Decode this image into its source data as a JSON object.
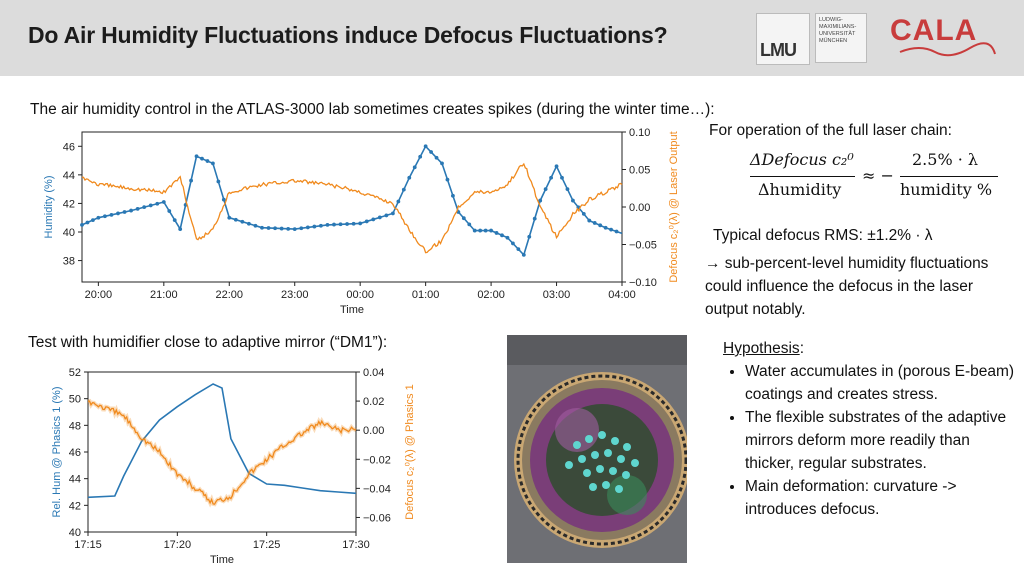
{
  "header": {
    "title": "Do Air Humidity Fluctuations induce Defocus Fluctuations?",
    "lmu_logo": "LMU",
    "lmu_name_lines": [
      "LUDWIG-",
      "MAXIMILIANS-",
      "UNIVERSITÄT",
      "MÜNCHEN"
    ],
    "cala_logo": "CALA"
  },
  "intro_text": "The air humidity control in the ATLAS-3000 lab sometimes creates spikes (during the winter time…):",
  "right_panel": {
    "operation_text": "For operation of the full laser chain:",
    "equation": {
      "lhs_num": "ΔDefocus c₂⁰",
      "lhs_den": "Δhumidity",
      "approx": "≈ −",
      "rhs_num": "2.5% · λ",
      "rhs_den": "humidity %"
    },
    "rms_text": "Typical defocus RMS: ±1.2% · λ",
    "conclusion_text": "→ sub-percent-level humidity fluctuations could influence the defocus in the laser output notably.",
    "hypothesis_title": "Hypothesis",
    "hypothesis_colon": ":",
    "hypothesis_items": [
      "Water accumulates in (porous E-beam) coatings and creates stress.",
      "The flexible substrates of the adaptive mirrors deform more readily than thicker, regular substrates.",
      "Main deformation: curvature -> introduces defocus."
    ]
  },
  "test_text": "Test with humidifier close to adaptive mirror (“DM1”):",
  "colors": {
    "humidity": "#2a78b4",
    "defocus": "#f08a1e",
    "cala_red": "#c83c3c"
  },
  "chart_data": [
    {
      "type": "line",
      "xlabel": "Time",
      "ylabel_left": "Humidity (%)",
      "ylabel_right": "Defocus c₂⁰(λ) @ Laser Output",
      "x_ticks": [
        "20:00",
        "21:00",
        "22:00",
        "23:00",
        "00:00",
        "01:00",
        "02:00",
        "03:00",
        "04:00"
      ],
      "y_left_ticks": [
        38,
        40,
        42,
        44,
        46
      ],
      "y_right_ticks": [
        "0.10",
        "0.05",
        "0.00",
        "−0.05",
        "−0.10"
      ],
      "ylim_left": [
        36.5,
        47
      ],
      "ylim_right": [
        -0.1,
        0.1
      ],
      "series": [
        {
          "axis": "left",
          "color": "#2a78b4",
          "x": [
            "19:45",
            "20:00",
            "20:30",
            "21:00",
            "21:15",
            "21:30",
            "21:45",
            "22:00",
            "22:30",
            "23:00",
            "23:30",
            "00:00",
            "00:30",
            "00:45",
            "01:00",
            "01:15",
            "01:30",
            "01:45",
            "02:00",
            "02:15",
            "02:30",
            "02:45",
            "03:00",
            "03:15",
            "03:30",
            "03:45",
            "04:00"
          ],
          "values": [
            40.5,
            41.0,
            41.5,
            42.1,
            40.2,
            45.3,
            44.8,
            41.0,
            40.3,
            40.2,
            40.5,
            40.6,
            41.3,
            43.8,
            46.0,
            44.8,
            41.4,
            40.1,
            40.1,
            39.6,
            38.4,
            42.2,
            44.6,
            42.2,
            40.8,
            40.3,
            39.9
          ]
        },
        {
          "axis": "right",
          "color": "#f08a1e",
          "x": [
            "19:45",
            "20:00",
            "20:30",
            "21:00",
            "21:15",
            "21:30",
            "21:45",
            "22:00",
            "22:30",
            "23:00",
            "23:30",
            "00:00",
            "00:30",
            "00:45",
            "01:00",
            "01:15",
            "01:30",
            "01:45",
            "02:00",
            "02:15",
            "02:30",
            "02:45",
            "03:00",
            "03:15",
            "03:30",
            "03:45",
            "04:00"
          ],
          "values": [
            0.04,
            0.03,
            0.025,
            0.02,
            0.04,
            -0.045,
            -0.03,
            0.02,
            0.03,
            0.035,
            0.03,
            0.02,
            0.005,
            -0.03,
            -0.06,
            -0.045,
            0.0,
            0.02,
            0.02,
            0.03,
            0.06,
            0.0,
            -0.04,
            -0.01,
            0.01,
            0.02,
            0.03
          ]
        }
      ]
    },
    {
      "type": "line",
      "xlabel": "Time",
      "ylabel_left": "Rel. Hum @ Phasics 1 (%)",
      "ylabel_right": "Defocus c₂⁰(λ) @ Phasics 1",
      "x_ticks": [
        "17:15",
        "17:20",
        "17:25",
        "17:30"
      ],
      "y_left_ticks": [
        40,
        42,
        44,
        46,
        48,
        50,
        52
      ],
      "y_right_ticks": [
        "0.04",
        "0.02",
        "0.00",
        "−0.02",
        "−0.04",
        "−0.06"
      ],
      "ylim_left": [
        40,
        52
      ],
      "ylim_right": [
        -0.07,
        0.04
      ],
      "series": [
        {
          "axis": "left",
          "color": "#2a78b4",
          "x": [
            "17:15",
            "17:16.5",
            "17:17",
            "17:18",
            "17:19",
            "17:20",
            "17:21",
            "17:22",
            "17:22.5",
            "17:23",
            "17:24",
            "17:25",
            "17:26",
            "17:27",
            "17:28",
            "17:29",
            "17:30"
          ],
          "values": [
            42.6,
            42.7,
            44.2,
            46.8,
            48.4,
            49.4,
            50.3,
            51.1,
            50.8,
            47.0,
            44.4,
            43.6,
            43.5,
            43.3,
            43.1,
            43.0,
            42.9
          ]
        },
        {
          "axis": "right",
          "color": "#f08a1e",
          "x": [
            "17:15",
            "17:16",
            "17:17",
            "17:18",
            "17:19",
            "17:20",
            "17:21",
            "17:22",
            "17:23",
            "17:24",
            "17:25",
            "17:26",
            "17:27",
            "17:28",
            "17:29",
            "17:30"
          ],
          "values": [
            0.02,
            0.015,
            0.01,
            -0.005,
            -0.015,
            -0.03,
            -0.04,
            -0.05,
            -0.045,
            -0.03,
            -0.02,
            -0.01,
            -0.002,
            0.005,
            0.0,
            0.0
          ]
        }
      ]
    }
  ]
}
